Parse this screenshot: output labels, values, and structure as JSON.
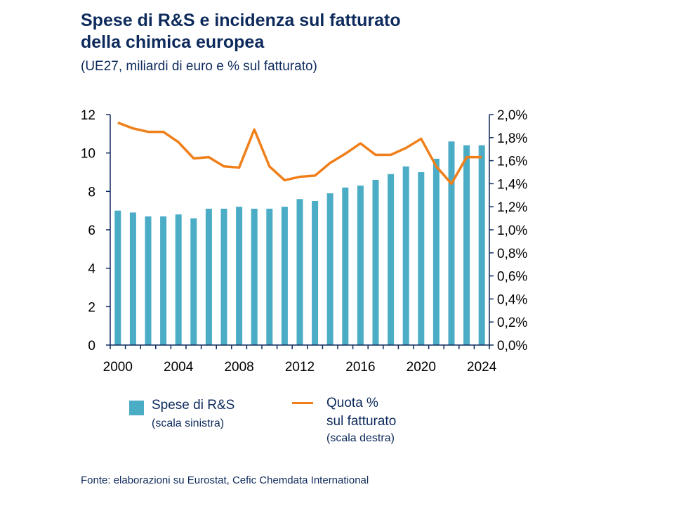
{
  "title_line1": "Spese di R&S e incidenza sul fatturato",
  "title_line2": "della chimica europea",
  "subtitle": "(UE27, miliardi di euro e % sul fatturato)",
  "source": "Fonte: elaborazioni su Eurostat, Cefic Chemdata International",
  "legend": {
    "bars_label": "Spese di R&S",
    "bars_note": "(scala sinistra)",
    "line_label1": "Quota %",
    "line_label2": "sul fatturato",
    "line_note": "(scala destra)"
  },
  "colors": {
    "bars": "#4bacc6",
    "line": "#f07f1a",
    "text": "#0d2a5c"
  },
  "chart_data": {
    "type": "bar+line",
    "x": [
      2000,
      2001,
      2002,
      2003,
      2004,
      2005,
      2006,
      2007,
      2008,
      2009,
      2010,
      2011,
      2012,
      2013,
      2014,
      2015,
      2016,
      2017,
      2018,
      2019,
      2020,
      2021,
      2022,
      2023,
      2024
    ],
    "x_tick_labels": [
      "2000",
      "2004",
      "2008",
      "2012",
      "2016",
      "2020",
      "2024"
    ],
    "series": [
      {
        "name": "Spese di R&S",
        "axis": "left",
        "type": "bar",
        "values": [
          7.0,
          6.9,
          6.7,
          6.7,
          6.8,
          6.6,
          7.1,
          7.1,
          7.2,
          7.1,
          7.1,
          7.2,
          7.6,
          7.5,
          7.9,
          8.2,
          8.3,
          8.6,
          8.9,
          9.3,
          9.0,
          9.7,
          10.6,
          10.4,
          10.4
        ]
      },
      {
        "name": "Quota % sul fatturato",
        "axis": "right",
        "type": "line",
        "values": [
          1.93,
          1.88,
          1.85,
          1.85,
          1.76,
          1.62,
          1.63,
          1.55,
          1.54,
          1.87,
          1.55,
          1.43,
          1.46,
          1.47,
          1.58,
          1.66,
          1.75,
          1.65,
          1.65,
          1.71,
          1.79,
          1.55,
          1.4,
          1.63,
          1.63
        ]
      }
    ],
    "left_axis": {
      "ylim": [
        0,
        12
      ],
      "ticks": [
        "0",
        "2",
        "4",
        "6",
        "8",
        "10",
        "12"
      ]
    },
    "right_axis": {
      "ylim": [
        0,
        2.0
      ],
      "ticks": [
        "0,0%",
        "0,2%",
        "0,4%",
        "0,6%",
        "0,8%",
        "1,0%",
        "1,2%",
        "1,4%",
        "1,6%",
        "1,8%",
        "2,0%"
      ]
    },
    "grid": false,
    "legend_position": "bottom"
  }
}
